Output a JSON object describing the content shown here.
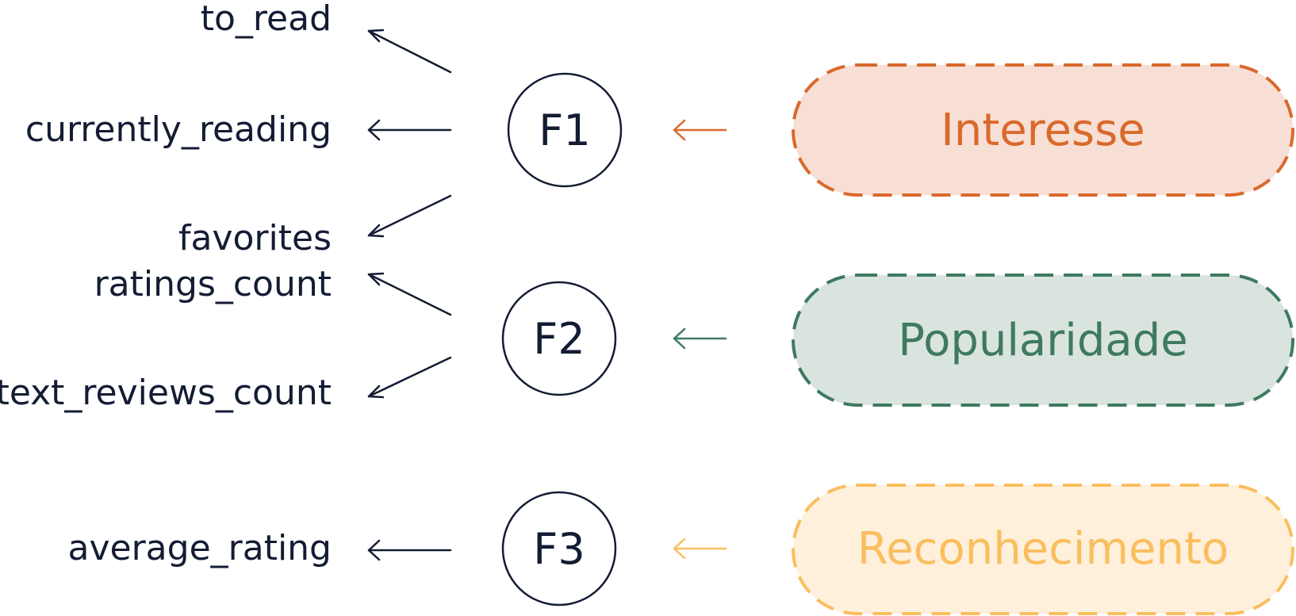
{
  "variables": [
    {
      "id": "to_read",
      "label": "to_read"
    },
    {
      "id": "currently_reading",
      "label": "currently_reading"
    },
    {
      "id": "favorites",
      "label": "favorites"
    },
    {
      "id": "ratings_count",
      "label": "ratings_count"
    },
    {
      "id": "text_reviews_count",
      "label": "text_reviews_count"
    },
    {
      "id": "average_rating",
      "label": "average_rating"
    }
  ],
  "factors": [
    {
      "id": "f1",
      "label": "F1"
    },
    {
      "id": "f2",
      "label": "F2"
    },
    {
      "id": "f3",
      "label": "F3"
    }
  ],
  "concepts": [
    {
      "id": "interesse",
      "label": "Interesse",
      "stroke_color": "#d9692c",
      "fill_color": "#f8dfd5",
      "text_color": "#d9692c"
    },
    {
      "id": "popularidade",
      "label": "Popularidade",
      "stroke_color": "#3e7a61",
      "fill_color": "#dae4df",
      "text_color": "#3e7a61"
    },
    {
      "id": "reconhecimento",
      "label": "Reconhecimento",
      "stroke_color": "#fbbe5e",
      "fill_color": "#fef0db",
      "text_color": "#fbbe5e"
    }
  ],
  "colors": {
    "text": "#131c33",
    "arrow": "#131c33",
    "node_stroke": "#131c33"
  }
}
